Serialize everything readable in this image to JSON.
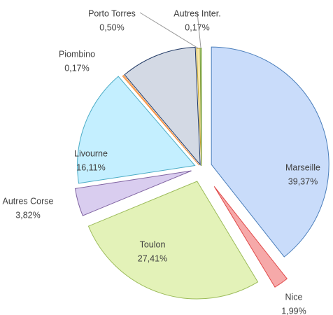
{
  "chart_data": {
    "type": "pie",
    "categories": [
      "Marseille",
      "Nice",
      "Toulon",
      "Autres Corse",
      "Livourne",
      "Piombino",
      null,
      "Porto Torres",
      "Autres Inter."
    ],
    "values": [
      39.37,
      1.99,
      27.41,
      3.82,
      16.11,
      0.17,
      10.46,
      0.5,
      0.17
    ],
    "value_labels": [
      "39,37%",
      "1,99%",
      "27,41%",
      "3,82%",
      "16,11%",
      "0,17%",
      null,
      "0,50%",
      "0,17%"
    ],
    "colors": [
      "#c9dcfa",
      "#f6a9a9",
      "#e3f2b8",
      "#d9cdef",
      "#c4efff",
      "#f9b983",
      "#d3d9e4",
      "#f6e7a6",
      "#cbe7a0"
    ],
    "border_colors": [
      "#4a7ebb",
      "#e04a4a",
      "#9bbb59",
      "#8064a2",
      "#4bacc6",
      "#f79646",
      "#1f3864",
      "#c0a030",
      "#7aa040"
    ]
  }
}
